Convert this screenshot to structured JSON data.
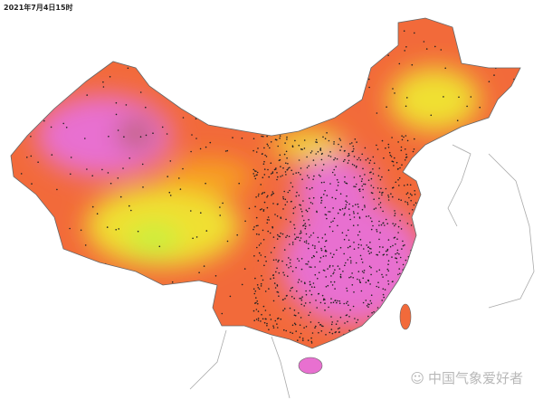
{
  "map": {
    "title": "2021年7月4日15时",
    "watermark": "中国气象爱好者",
    "colors": {
      "low": "#c8f03c",
      "mid_low": "#f0e030",
      "mid": "#f7a020",
      "high": "#f26a3a",
      "very_high": "#e870d0",
      "extreme": "#b86060"
    }
  }
}
